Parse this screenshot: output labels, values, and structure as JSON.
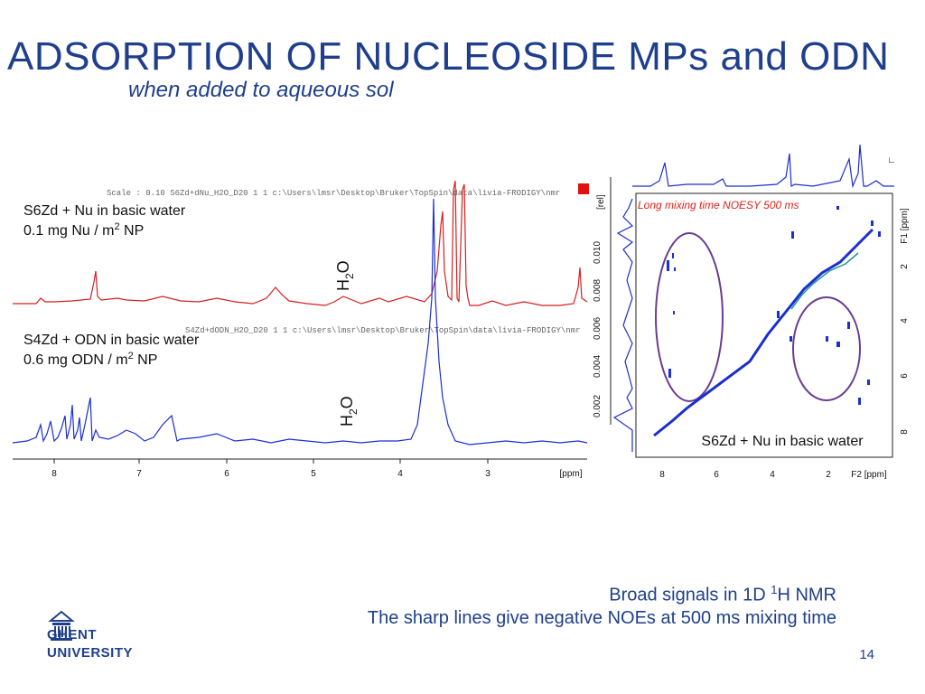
{
  "slide": {
    "title": "ADSORPTION OF NUCLEOSIDE MPs and ODN",
    "subtitle": "when added to aqueous sol",
    "slide_number": "14",
    "footer_line1_prefix": "Broad signals in 1D ",
    "footer_line1_sup": "1",
    "footer_line1_suffix": "H NMR",
    "footer_line2": "The sharp lines give negative NOEs at 500 ms mixing time"
  },
  "logo": {
    "line1": "GHENT",
    "line2": "UNIVERSITY",
    "icon": "ghent-university-building-icon"
  },
  "spectrum_1d": {
    "top_label_line1": "S6Zd + Nu in basic water",
    "top_label_line2_prefix": "0.1 mg Nu / m",
    "top_label_line2_sup": "2",
    "top_label_line2_suffix": " NP",
    "top_header": "Scale : 0.10    S6Zd+dNu_H2O_D20  1  1  c:\\Users\\lmsr\\Desktop\\Bruker\\TopSpin\\data\\livia-FRODIGY\\nmr",
    "bottom_label_line1": "S4Zd + ODN in basic water",
    "bottom_label_line2_prefix": "0.6 mg ODN / m",
    "bottom_label_line2_sup": "2",
    "bottom_label_line2_suffix": " NP",
    "bottom_header": "S4Zd+dODN_H2O_D20  1  1  c:\\Users\\lmsr\\Desktop\\Bruker\\TopSpin\\data\\livia-FRODIGY\\nmr",
    "water_label_base": "H",
    "water_label_sub": "2",
    "water_label_end": "O",
    "x_ticks": [
      "8",
      "7",
      "6",
      "5",
      "4",
      "3"
    ],
    "x_unit": "[ppm]",
    "intensity_unit": "[rel]",
    "intensity_ticks": [
      "0.002",
      "0.004",
      "0.006",
      "0.008",
      "0.010"
    ],
    "top_color": "#d42020",
    "bottom_color": "#1a2fd0"
  },
  "noesy": {
    "header": "Long mixing time NOESY 500 ms",
    "label": "S6Zd + Nu in basic water",
    "f2_ticks": [
      "8",
      "6",
      "4",
      "2"
    ],
    "f2_unit": "F2 [ppm]",
    "f1_ticks": [
      "2",
      "4",
      "6",
      "8"
    ],
    "f1_unit": "F1 [ppm]",
    "ellipse_color": "#6a3d8f",
    "header_color": "#e0201a"
  }
}
